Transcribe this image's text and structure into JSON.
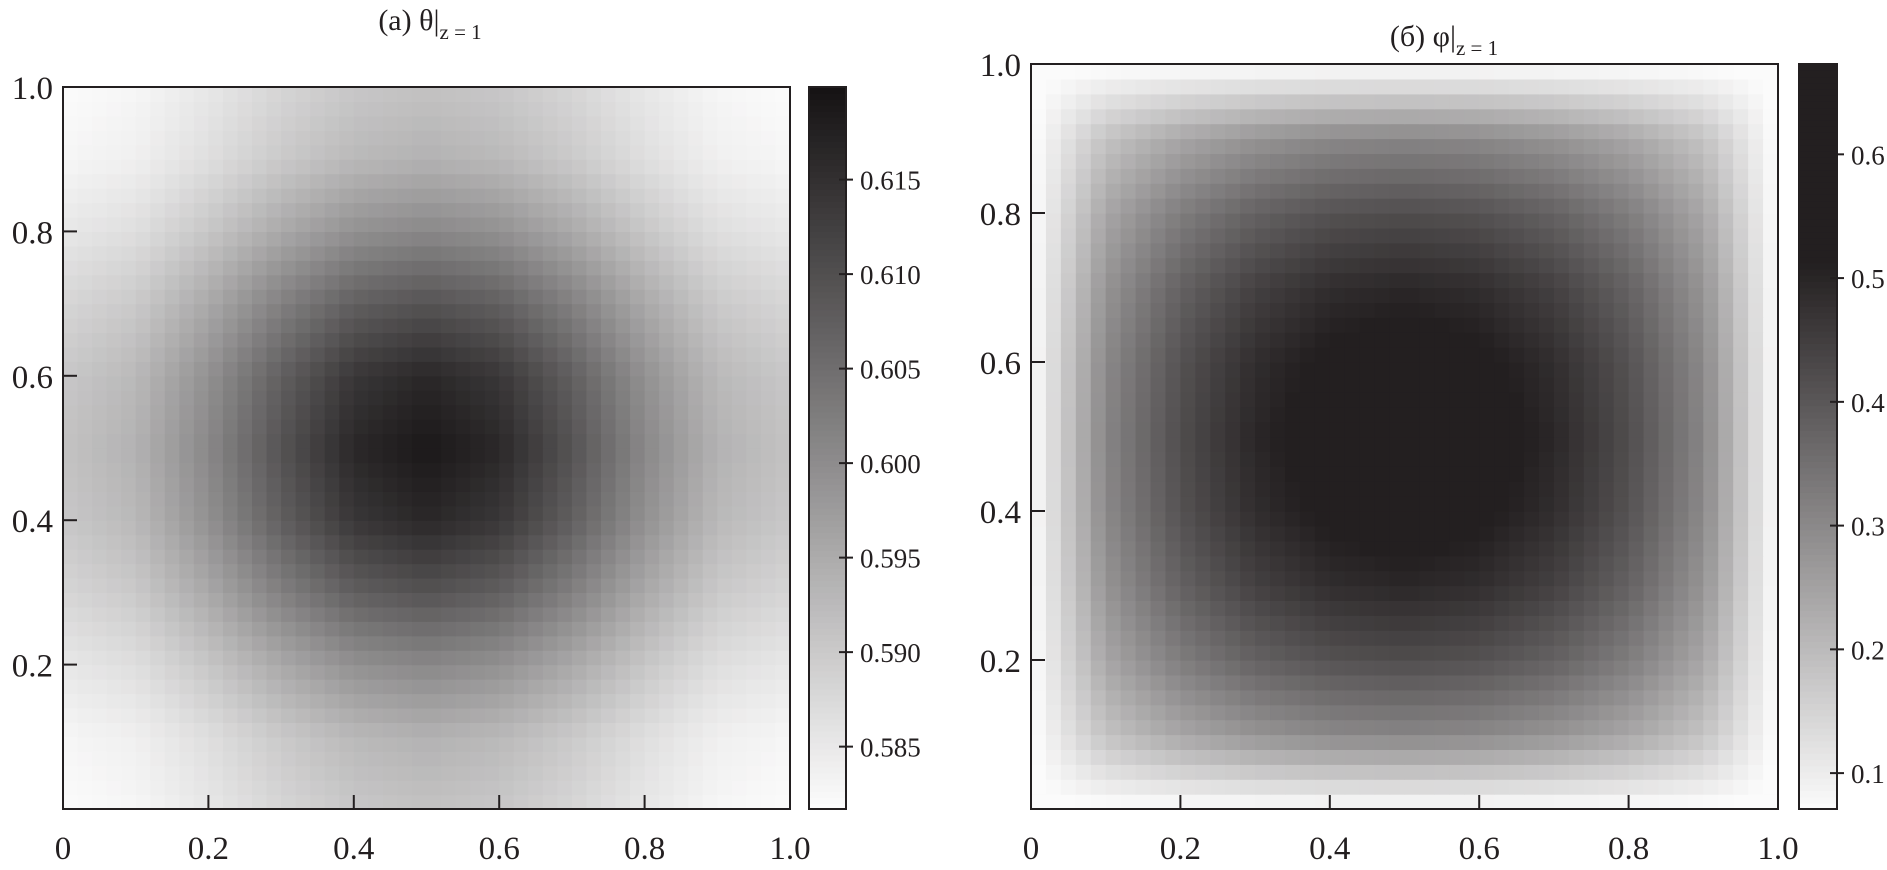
{
  "chart_data": [
    {
      "type": "heatmap",
      "title_main": "(a) θ",
      "title_bar": "|",
      "title_sub": "z = 1",
      "x": [
        0,
        0.1,
        0.2,
        0.3,
        0.4,
        0.5,
        0.6,
        0.7,
        0.8,
        0.9,
        1.0
      ],
      "y": [
        0,
        0.1,
        0.2,
        0.3,
        0.4,
        0.5,
        0.6,
        0.7,
        0.8,
        0.9,
        1.0
      ],
      "xlim": [
        0,
        1
      ],
      "ylim": [
        0,
        1
      ],
      "xticks": [
        "0",
        "0.2",
        "0.4",
        "0.6",
        "0.8",
        "1.0"
      ],
      "yticks": [
        "0.2",
        "0.4",
        "0.6",
        "0.8",
        "1.0"
      ],
      "colorbar": {
        "range": [
          0.5817,
          0.6199
        ],
        "ticks": [
          0.585,
          0.59,
          0.595,
          0.6,
          0.605,
          0.61,
          0.615
        ],
        "tick_labels": [
          "0.585",
          "0.590",
          "0.595",
          "0.600",
          "0.605",
          "0.610",
          "0.615"
        ],
        "colormap": "gray (white = low, black = high)",
        "low_color": "#fdfdfd",
        "high_color": "#151213"
      },
      "z": [
        [
          0.582,
          0.5829,
          0.5852,
          0.5881,
          0.5904,
          0.5913,
          0.5904,
          0.5881,
          0.5852,
          0.5829,
          0.582
        ],
        [
          0.5829,
          0.5839,
          0.5867,
          0.5901,
          0.5928,
          0.5939,
          0.5928,
          0.5901,
          0.5867,
          0.5839,
          0.5829
        ],
        [
          0.5852,
          0.5867,
          0.5906,
          0.5954,
          0.5993,
          0.6008,
          0.5993,
          0.5954,
          0.5906,
          0.5867,
          0.5852
        ],
        [
          0.5881,
          0.5901,
          0.5954,
          0.602,
          0.6074,
          0.6094,
          0.6074,
          0.602,
          0.5954,
          0.5901,
          0.5881
        ],
        [
          0.5904,
          0.5928,
          0.5993,
          0.6074,
          0.6139,
          0.6164,
          0.6139,
          0.6074,
          0.5993,
          0.5928,
          0.5904
        ],
        [
          0.5913,
          0.5939,
          0.6008,
          0.6094,
          0.6164,
          0.619,
          0.6164,
          0.6094,
          0.6008,
          0.5939,
          0.5913
        ],
        [
          0.5904,
          0.5928,
          0.5993,
          0.6074,
          0.6139,
          0.6164,
          0.6139,
          0.6074,
          0.5993,
          0.5928,
          0.5904
        ],
        [
          0.5881,
          0.5901,
          0.5954,
          0.602,
          0.6074,
          0.6094,
          0.6074,
          0.602,
          0.5954,
          0.5901,
          0.5881
        ],
        [
          0.5852,
          0.5867,
          0.5906,
          0.5954,
          0.5993,
          0.6008,
          0.5993,
          0.5954,
          0.5906,
          0.5867,
          0.5852
        ],
        [
          0.5829,
          0.5839,
          0.5867,
          0.5901,
          0.5928,
          0.5939,
          0.5928,
          0.5901,
          0.5867,
          0.5839,
          0.5829
        ],
        [
          0.582,
          0.5829,
          0.5852,
          0.5881,
          0.5904,
          0.5913,
          0.5904,
          0.5881,
          0.5852,
          0.5829,
          0.582
        ]
      ]
    },
    {
      "type": "heatmap",
      "title_main": "(б) φ",
      "title_bar": "|",
      "title_sub": "z = 1",
      "x": [
        0,
        0.1,
        0.2,
        0.3,
        0.4,
        0.5,
        0.6,
        0.7,
        0.8,
        0.9,
        1.0
      ],
      "y": [
        0,
        0.1,
        0.2,
        0.3,
        0.4,
        0.5,
        0.6,
        0.7,
        0.8,
        0.9,
        1.0
      ],
      "xlim": [
        0,
        1
      ],
      "ylim": [
        0,
        1
      ],
      "xticks": [
        "0",
        "0.2",
        "0.4",
        "0.6",
        "0.8",
        "1.0"
      ],
      "yticks": [
        "0.2",
        "0.4",
        "0.6",
        "0.8",
        "1.0"
      ],
      "colorbar": {
        "range": [
          0.071,
          0.673
        ],
        "saturation_above": 0.513,
        "ticks": [
          0.1,
          0.2,
          0.3,
          0.4,
          0.5,
          0.6
        ],
        "tick_labels": [
          "0.1",
          "0.2",
          "0.3",
          "0.4",
          "0.5",
          "0.6"
        ],
        "colormap": "gray (white = low, black = high)",
        "low_color": "#fbfbfb",
        "high_color": "#231f20"
      },
      "z": [
        [
          0.065,
          0.065,
          0.065,
          0.065,
          0.065,
          0.065,
          0.065,
          0.065,
          0.065,
          0.065,
          0.065
        ],
        [
          0.065,
          0.185,
          0.241,
          0.278,
          0.3,
          0.307,
          0.3,
          0.278,
          0.241,
          0.185,
          0.065
        ],
        [
          0.065,
          0.241,
          0.324,
          0.379,
          0.411,
          0.421,
          0.411,
          0.379,
          0.324,
          0.241,
          0.065
        ],
        [
          0.065,
          0.278,
          0.379,
          0.445,
          0.484,
          0.497,
          0.484,
          0.445,
          0.379,
          0.278,
          0.065
        ],
        [
          0.065,
          0.3,
          0.411,
          0.484,
          0.526,
          0.541,
          0.526,
          0.484,
          0.411,
          0.3,
          0.065
        ],
        [
          0.065,
          0.307,
          0.421,
          0.497,
          0.541,
          0.555,
          0.541,
          0.497,
          0.421,
          0.307,
          0.065
        ],
        [
          0.065,
          0.3,
          0.411,
          0.484,
          0.526,
          0.541,
          0.526,
          0.484,
          0.411,
          0.3,
          0.065
        ],
        [
          0.065,
          0.278,
          0.379,
          0.445,
          0.484,
          0.497,
          0.484,
          0.445,
          0.379,
          0.278,
          0.065
        ],
        [
          0.065,
          0.241,
          0.324,
          0.379,
          0.411,
          0.421,
          0.411,
          0.379,
          0.324,
          0.241,
          0.065
        ],
        [
          0.065,
          0.185,
          0.241,
          0.278,
          0.3,
          0.307,
          0.3,
          0.278,
          0.241,
          0.185,
          0.065
        ],
        [
          0.065,
          0.065,
          0.065,
          0.065,
          0.065,
          0.065,
          0.065,
          0.065,
          0.065,
          0.065,
          0.065
        ]
      ]
    }
  ]
}
